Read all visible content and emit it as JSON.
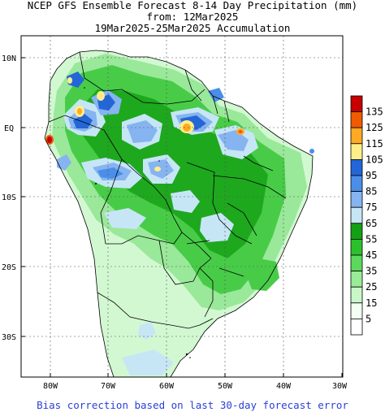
{
  "titles": {
    "line1": "NCEP GFS Ensemble Forecast 8-14 Day Precipitation (mm)",
    "line2": "from: 12Mar2025",
    "line3": "19Mar2025-25Mar2025 Accumulation"
  },
  "footer": "Bias correction based on last 30-day forecast error",
  "map": {
    "lat_labels": [
      "10N",
      "EQ",
      "10S",
      "20S",
      "30S"
    ],
    "lon_labels": [
      "80W",
      "70W",
      "60W",
      "50W",
      "40W",
      "30W"
    ]
  },
  "legend": {
    "labels": [
      "135",
      "125",
      "115",
      "105",
      "95",
      "85",
      "75",
      "65",
      "55",
      "45",
      "35",
      "25",
      "15",
      "5"
    ],
    "colors": [
      "#c80000",
      "#f05a00",
      "#ffaa22",
      "#ffee88",
      "#2266d8",
      "#4a8ee8",
      "#86b4f0",
      "#c6e6f6",
      "#14a014",
      "#2cc02c",
      "#5cd85c",
      "#98ec98",
      "#c8f8c8",
      "#f2fff2",
      "#ffffff"
    ]
  }
}
